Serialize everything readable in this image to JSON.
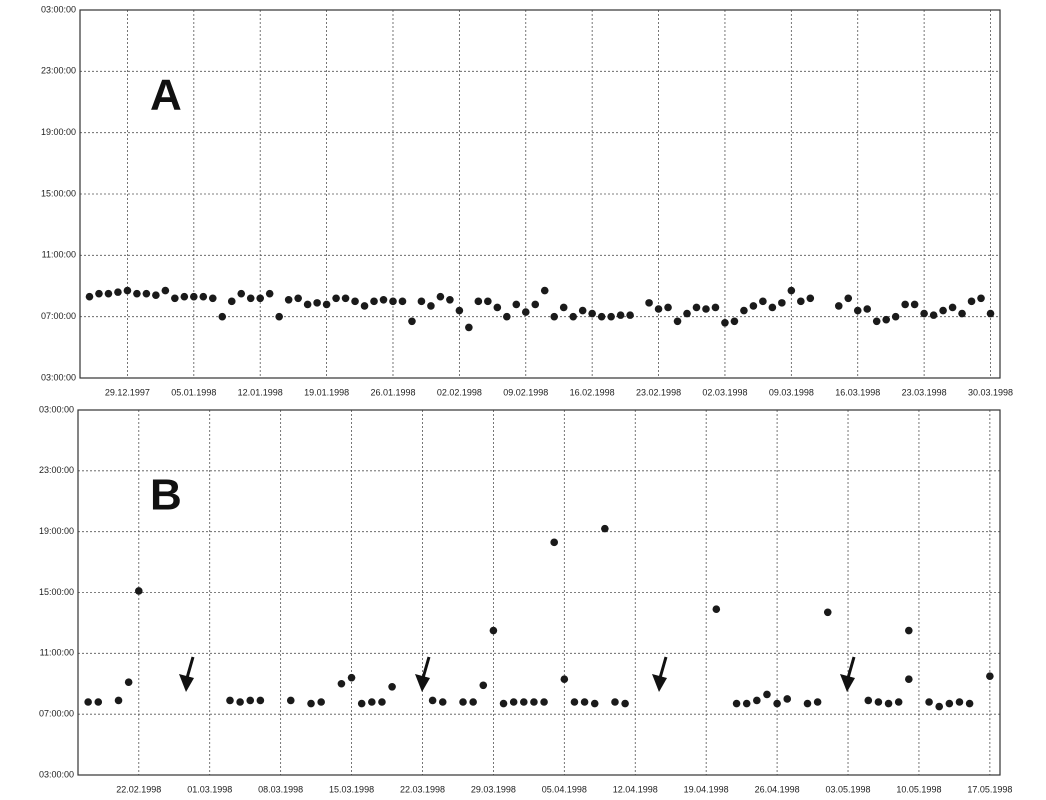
{
  "chart_data": [
    {
      "type": "scatter",
      "label": "A",
      "color": "#1a1a1a",
      "grid": true,
      "xlim": [
        "1997-12-24",
        "1998-03-31"
      ],
      "ylim": [
        3,
        27
      ],
      "xticks": [
        {
          "value": "1997-12-29",
          "label": "29.12.1997"
        },
        {
          "value": "1998-01-05",
          "label": "05.01.1998"
        },
        {
          "value": "1998-01-12",
          "label": "12.01.1998"
        },
        {
          "value": "1998-01-19",
          "label": "19.01.1998"
        },
        {
          "value": "1998-01-26",
          "label": "26.01.1998"
        },
        {
          "value": "1998-02-02",
          "label": "02.02.1998"
        },
        {
          "value": "1998-02-09",
          "label": "09.02.1998"
        },
        {
          "value": "1998-02-16",
          "label": "16.02.1998"
        },
        {
          "value": "1998-02-23",
          "label": "23.02.1998"
        },
        {
          "value": "1998-03-02",
          "label": "02.03.1998"
        },
        {
          "value": "1998-03-09",
          "label": "09.03.1998"
        },
        {
          "value": "1998-03-16",
          "label": "16.03.1998"
        },
        {
          "value": "1998-03-23",
          "label": "23.03.1998"
        },
        {
          "value": "1998-03-30",
          "label": "30.03.1998"
        }
      ],
      "yticks": [
        {
          "value": 3,
          "label": "03:00:00"
        },
        {
          "value": 7,
          "label": "07:00:00"
        },
        {
          "value": 11,
          "label": "11:00:00"
        },
        {
          "value": 15,
          "label": "15:00:00"
        },
        {
          "value": 19,
          "label": "19:00:00"
        },
        {
          "value": 23,
          "label": "23:00:00"
        },
        {
          "value": 27,
          "label": "03:00:00"
        }
      ],
      "x": [
        "1997-12-25",
        "1997-12-26",
        "1997-12-27",
        "1997-12-28",
        "1997-12-29",
        "1997-12-30",
        "1997-12-31",
        "1998-01-01",
        "1998-01-02",
        "1998-01-03",
        "1998-01-04",
        "1998-01-05",
        "1998-01-06",
        "1998-01-07",
        "1998-01-08",
        "1998-01-09",
        "1998-01-10",
        "1998-01-11",
        "1998-01-12",
        "1998-01-13",
        "1998-01-14",
        "1998-01-15",
        "1998-01-16",
        "1998-01-17",
        "1998-01-18",
        "1998-01-19",
        "1998-01-20",
        "1998-01-21",
        "1998-01-22",
        "1998-01-23",
        "1998-01-24",
        "1998-01-25",
        "1998-01-26",
        "1998-01-27",
        "1998-01-28",
        "1998-01-29",
        "1998-01-30",
        "1998-01-31",
        "1998-02-01",
        "1998-02-02",
        "1998-02-03",
        "1998-02-04",
        "1998-02-05",
        "1998-02-06",
        "1998-02-07",
        "1998-02-08",
        "1998-02-09",
        "1998-02-10",
        "1998-02-11",
        "1998-02-12",
        "1998-02-13",
        "1998-02-14",
        "1998-02-15",
        "1998-02-16",
        "1998-02-17",
        "1998-02-18",
        "1998-02-19",
        "1998-02-20",
        "1998-02-22",
        "1998-02-23",
        "1998-02-24",
        "1998-02-25",
        "1998-02-26",
        "1998-02-27",
        "1998-02-28",
        "1998-03-01",
        "1998-03-02",
        "1998-03-03",
        "1998-03-04",
        "1998-03-05",
        "1998-03-06",
        "1998-03-07",
        "1998-03-08",
        "1998-03-09",
        "1998-03-10",
        "1998-03-11",
        "1998-03-14",
        "1998-03-15",
        "1998-03-16",
        "1998-03-17",
        "1998-03-18",
        "1998-03-19",
        "1998-03-20",
        "1998-03-21",
        "1998-03-22",
        "1998-03-23",
        "1998-03-24",
        "1998-03-25",
        "1998-03-26",
        "1998-03-27",
        "1998-03-28",
        "1998-03-29",
        "1998-03-30"
      ],
      "values": [
        8.3,
        8.5,
        8.5,
        8.6,
        8.7,
        8.5,
        8.5,
        8.4,
        8.7,
        8.2,
        8.3,
        8.3,
        8.3,
        8.2,
        7.0,
        8.0,
        8.5,
        8.2,
        8.2,
        8.5,
        7.0,
        8.1,
        8.2,
        7.8,
        7.9,
        7.8,
        8.2,
        8.2,
        8.0,
        7.7,
        8.0,
        8.1,
        8.0,
        8.0,
        6.7,
        8.0,
        7.7,
        8.3,
        8.1,
        7.4,
        6.3,
        8.0,
        8.0,
        7.6,
        7.0,
        7.8,
        7.3,
        7.8,
        8.7,
        7.0,
        7.6,
        7.0,
        7.4,
        7.2,
        7.0,
        7.0,
        7.1,
        7.1,
        7.9,
        7.5,
        7.6,
        6.7,
        7.2,
        7.6,
        7.5,
        7.6,
        6.6,
        6.7,
        7.4,
        7.7,
        8.0,
        7.6,
        7.9,
        8.7,
        8.0,
        8.2,
        7.7,
        8.2,
        7.4,
        7.5,
        6.7,
        6.8,
        7.0,
        7.8,
        7.8,
        7.2,
        7.1,
        7.4,
        7.6,
        7.2,
        8.0,
        8.2,
        7.2
      ]
    },
    {
      "type": "scatter",
      "label": "B",
      "color": "#1a1a1a",
      "grid": true,
      "xlim": [
        "1998-02-16",
        "1998-05-18"
      ],
      "ylim": [
        3,
        27
      ],
      "xticks": [
        {
          "value": "1998-02-22",
          "label": "22.02.1998"
        },
        {
          "value": "1998-03-01",
          "label": "01.03.1998"
        },
        {
          "value": "1998-03-08",
          "label": "08.03.1998"
        },
        {
          "value": "1998-03-15",
          "label": "15.03.1998"
        },
        {
          "value": "1998-03-22",
          "label": "22.03.1998"
        },
        {
          "value": "1998-03-29",
          "label": "29.03.1998"
        },
        {
          "value": "1998-04-05",
          "label": "05.04.1998"
        },
        {
          "value": "1998-04-12",
          "label": "12.04.1998"
        },
        {
          "value": "1998-04-19",
          "label": "19.04.1998"
        },
        {
          "value": "1998-04-26",
          "label": "26.04.1998"
        },
        {
          "value": "1998-05-03",
          "label": "03.05.1998"
        },
        {
          "value": "1998-05-10",
          "label": "10.05.1998"
        },
        {
          "value": "1998-05-17",
          "label": "17.05.1998"
        }
      ],
      "yticks": [
        {
          "value": 3,
          "label": "03:00:00"
        },
        {
          "value": 7,
          "label": "07:00:00"
        },
        {
          "value": 11,
          "label": "11:00:00"
        },
        {
          "value": 15,
          "label": "15:00:00"
        },
        {
          "value": 19,
          "label": "19:00:00"
        },
        {
          "value": 23,
          "label": "23:00:00"
        },
        {
          "value": 27,
          "label": "03:00:00"
        }
      ],
      "x": [
        "1998-02-17",
        "1998-02-18",
        "1998-02-20",
        "1998-02-21",
        "1998-02-22",
        "1998-03-03",
        "1998-03-04",
        "1998-03-05",
        "1998-03-06",
        "1998-03-09",
        "1998-03-11",
        "1998-03-12",
        "1998-03-14",
        "1998-03-15",
        "1998-03-16",
        "1998-03-17",
        "1998-03-18",
        "1998-03-19",
        "1998-03-23",
        "1998-03-24",
        "1998-03-26",
        "1998-03-27",
        "1998-03-28",
        "1998-03-29",
        "1998-03-30",
        "1998-03-31",
        "1998-04-01",
        "1998-04-02",
        "1998-04-03",
        "1998-04-04",
        "1998-04-05",
        "1998-04-06",
        "1998-04-07",
        "1998-04-08",
        "1998-04-09",
        "1998-04-10",
        "1998-04-11",
        "1998-04-20",
        "1998-04-22",
        "1998-04-23",
        "1998-04-24",
        "1998-04-25",
        "1998-04-26",
        "1998-04-27",
        "1998-04-29",
        "1998-04-30",
        "1998-05-01",
        "1998-05-05",
        "1998-05-06",
        "1998-05-07",
        "1998-05-08",
        "1998-05-09",
        "1998-05-09",
        "1998-05-11",
        "1998-05-12",
        "1998-05-13",
        "1998-05-14",
        "1998-05-15",
        "1998-05-17"
      ],
      "values": [
        7.8,
        7.8,
        7.9,
        9.1,
        15.1,
        7.9,
        7.8,
        7.9,
        7.9,
        7.9,
        7.7,
        7.8,
        9.0,
        9.4,
        7.7,
        7.8,
        7.8,
        8.8,
        7.9,
        7.8,
        7.8,
        7.8,
        8.9,
        12.5,
        7.7,
        7.8,
        7.8,
        7.8,
        7.8,
        18.3,
        9.3,
        7.8,
        7.8,
        7.7,
        19.2,
        7.8,
        7.7,
        13.9,
        7.7,
        7.7,
        7.9,
        8.3,
        7.7,
        8.0,
        7.7,
        7.8,
        13.7,
        7.9,
        7.8,
        7.7,
        7.8,
        12.5,
        9.3,
        7.8,
        7.5,
        7.7,
        7.8,
        7.7,
        9.5
      ]
    }
  ]
}
